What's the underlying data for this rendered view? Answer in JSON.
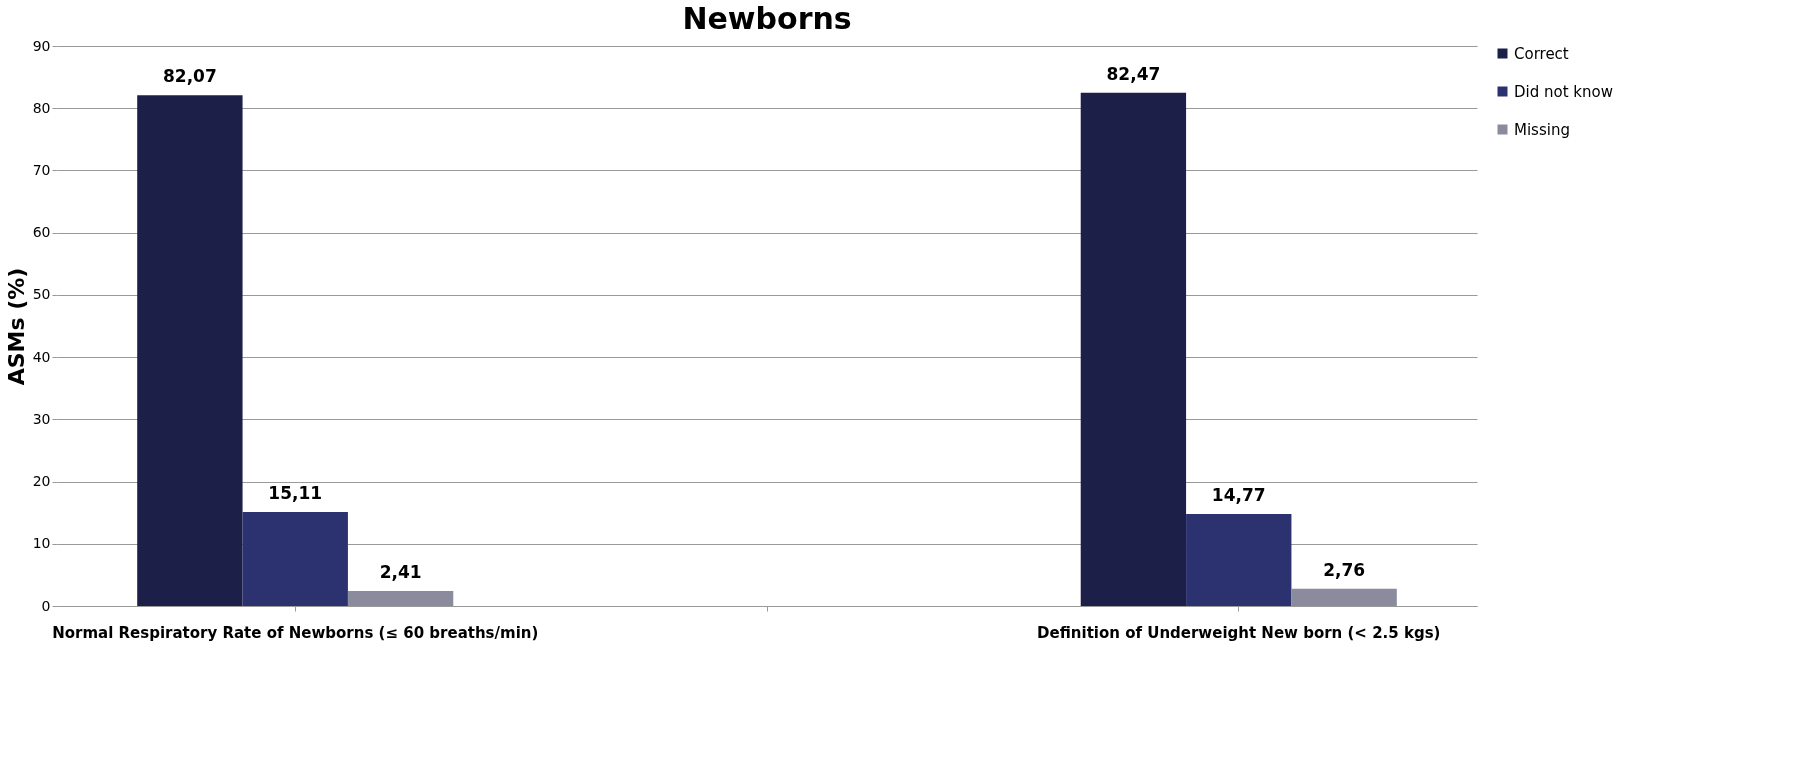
{
  "chart_data": {
    "type": "bar",
    "title": "Newborns",
    "ylabel": "ASMs (%)",
    "categories": [
      "Normal Respiratory Rate of Newborns (≤ 60 breaths/min)",
      null,
      "Definition of Underweight New born (< 2.5 kgs)"
    ],
    "series": [
      {
        "name": "Correct",
        "color": "#1c1f48",
        "values": [
          82.07,
          null,
          82.47
        ],
        "value_labels": [
          "82,07",
          null,
          "82,47"
        ]
      },
      {
        "name": "Did not know",
        "color": "#2c3170",
        "values": [
          15.11,
          null,
          14.77
        ],
        "value_labels": [
          "15,11",
          null,
          "14,77"
        ]
      },
      {
        "name": "Missing",
        "color": "#8a8b9c",
        "values": [
          2.41,
          null,
          2.76
        ],
        "value_labels": [
          "2,41",
          null,
          "2,76"
        ]
      }
    ],
    "ylim": [
      0,
      90
    ],
    "yticks": [
      0,
      10,
      20,
      30,
      40,
      50,
      60,
      70,
      80,
      90
    ],
    "grid": "y",
    "legend": "right"
  }
}
